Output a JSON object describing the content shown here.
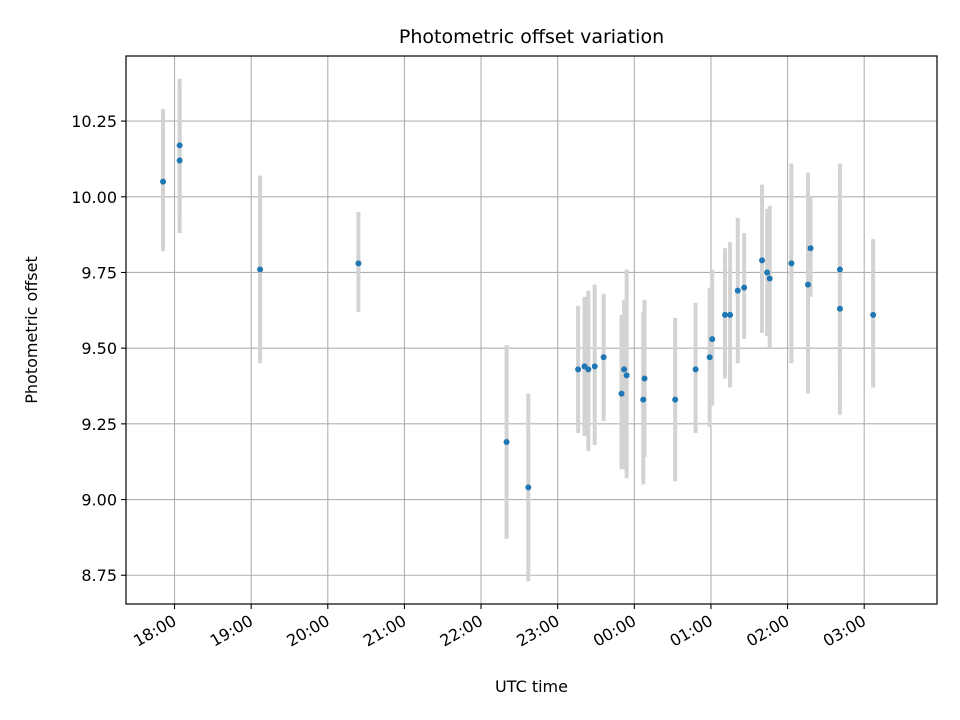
{
  "chart_data": {
    "type": "scatter",
    "title": "Photometric offset variation",
    "xlabel": "UTC time",
    "ylabel": "Photometric offset",
    "x_unit": "UTC time (hh:mm), evening to following morning",
    "xlim": [
      "17:22",
      "03:57"
    ],
    "ylim": [
      8.655,
      10.465
    ],
    "grid": true,
    "legend": "none",
    "point_color": "#1f77b4",
    "errorbar_color": "#d3d3d3",
    "x_ticks": [
      "18:00",
      "19:00",
      "20:00",
      "21:00",
      "22:00",
      "23:00",
      "00:00",
      "01:00",
      "02:00",
      "03:00"
    ],
    "y_ticks": [
      "8.75",
      "9.00",
      "9.25",
      "9.50",
      "9.75",
      "10.00",
      "10.25"
    ],
    "series": [
      {
        "points": [
          {
            "x": "17:51",
            "y": 10.05,
            "lo": 9.82,
            "hi": 10.29
          },
          {
            "x": "18:04",
            "y": 10.17,
            "lo": 9.95,
            "hi": 10.39
          },
          {
            "x": "18:04",
            "y": 10.12,
            "lo": 9.88,
            "hi": 10.35
          },
          {
            "x": "19:07",
            "y": 9.76,
            "lo": 9.45,
            "hi": 10.07
          },
          {
            "x": "20:24",
            "y": 9.78,
            "lo": 9.62,
            "hi": 9.95
          },
          {
            "x": "22:20",
            "y": 9.19,
            "lo": 8.87,
            "hi": 9.51
          },
          {
            "x": "22:37",
            "y": 9.04,
            "lo": 8.73,
            "hi": 9.35
          },
          {
            "x": "23:16",
            "y": 9.43,
            "lo": 9.22,
            "hi": 9.64
          },
          {
            "x": "23:21",
            "y": 9.44,
            "lo": 9.21,
            "hi": 9.67
          },
          {
            "x": "23:24",
            "y": 9.43,
            "lo": 9.16,
            "hi": 9.69
          },
          {
            "x": "23:29",
            "y": 9.44,
            "lo": 9.18,
            "hi": 9.71
          },
          {
            "x": "23:36",
            "y": 9.47,
            "lo": 9.26,
            "hi": 9.68
          },
          {
            "x": "23:50",
            "y": 9.35,
            "lo": 9.1,
            "hi": 9.61
          },
          {
            "x": "23:52",
            "y": 9.43,
            "lo": 9.1,
            "hi": 9.66
          },
          {
            "x": "23:54",
            "y": 9.41,
            "lo": 9.07,
            "hi": 9.76
          },
          {
            "x": "00:07",
            "y": 9.33,
            "lo": 9.05,
            "hi": 9.62
          },
          {
            "x": "00:08",
            "y": 9.4,
            "lo": 9.14,
            "hi": 9.66
          },
          {
            "x": "00:32",
            "y": 9.33,
            "lo": 9.06,
            "hi": 9.6
          },
          {
            "x": "00:48",
            "y": 9.43,
            "lo": 9.22,
            "hi": 9.65
          },
          {
            "x": "00:59",
            "y": 9.47,
            "lo": 9.24,
            "hi": 9.7
          },
          {
            "x": "01:01",
            "y": 9.53,
            "lo": 9.31,
            "hi": 9.76
          },
          {
            "x": "01:11",
            "y": 9.61,
            "lo": 9.4,
            "hi": 9.83
          },
          {
            "x": "01:15",
            "y": 9.61,
            "lo": 9.37,
            "hi": 9.85
          },
          {
            "x": "01:21",
            "y": 9.69,
            "lo": 9.45,
            "hi": 9.93
          },
          {
            "x": "01:26",
            "y": 9.7,
            "lo": 9.53,
            "hi": 9.88
          },
          {
            "x": "01:40",
            "y": 9.79,
            "lo": 9.55,
            "hi": 10.04
          },
          {
            "x": "01:44",
            "y": 9.75,
            "lo": 9.54,
            "hi": 9.96
          },
          {
            "x": "01:46",
            "y": 9.73,
            "lo": 9.5,
            "hi": 9.97
          },
          {
            "x": "02:03",
            "y": 9.78,
            "lo": 9.45,
            "hi": 10.11
          },
          {
            "x": "02:16",
            "y": 9.71,
            "lo": 9.35,
            "hi": 10.08
          },
          {
            "x": "02:18",
            "y": 9.83,
            "lo": 9.67,
            "hi": 10.0
          },
          {
            "x": "02:41",
            "y": 9.76,
            "lo": 9.42,
            "hi": 10.11
          },
          {
            "x": "02:41",
            "y": 9.63,
            "lo": 9.28,
            "hi": 9.98
          },
          {
            "x": "03:07",
            "y": 9.61,
            "lo": 9.37,
            "hi": 9.86
          }
        ]
      }
    ]
  }
}
